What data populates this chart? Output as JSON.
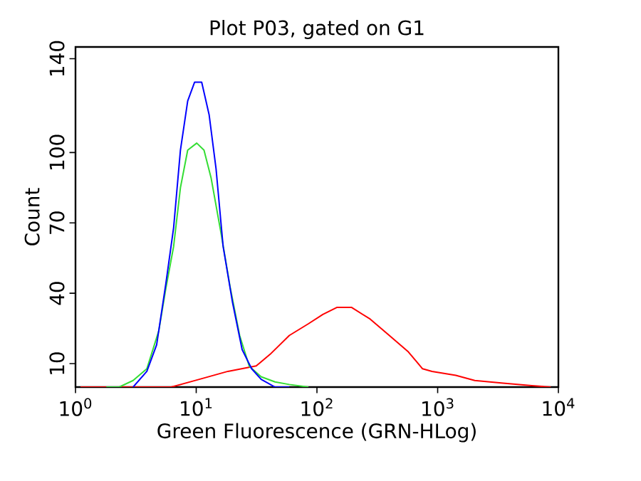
{
  "chart_data": {
    "type": "line",
    "title": "Plot P03, gated on G1",
    "xlabel": "Green Fluorescence (GRN-HLog)",
    "ylabel": "Count",
    "log": "x",
    "grid": false,
    "marker": "none",
    "line_style": "solid",
    "xlim": [
      1,
      10000
    ],
    "ylim": [
      0,
      145
    ],
    "xticks": [
      {
        "value": 1,
        "label": "10$^{0}$"
      },
      {
        "value": 10,
        "label": "10$^{1}$"
      },
      {
        "value": 100,
        "label": "10$^{2}$"
      },
      {
        "value": 1000,
        "label": "10$^{3}$"
      },
      {
        "value": 10000,
        "label": "10$^{4}$"
      }
    ],
    "yticks": [
      10,
      40,
      70,
      100,
      140
    ],
    "series": [
      {
        "color": "#ff0000",
        "x": [
          1.1,
          6.2,
          10.6,
          18.3,
          31.4,
          41,
          59,
          85,
          112,
          147,
          193,
          276,
          398,
          572,
          750,
          898,
          1413,
          2028,
          3490,
          6025,
          8650
        ],
        "values": [
          0,
          0,
          3.3,
          6.7,
          9,
          14,
          22,
          27,
          31,
          34,
          34,
          29,
          22,
          15,
          7.8,
          6.7,
          5,
          2.8,
          1.7,
          0.6,
          0
        ]
      },
      {
        "color": "#33dd33",
        "x": [
          1.8,
          2.3,
          3.0,
          3.9,
          4.9,
          5.6,
          6.5,
          7.4,
          8.5,
          10.1,
          11.6,
          13.3,
          16,
          19.2,
          22.9,
          27.5,
          34.5,
          45,
          59,
          85
        ],
        "values": [
          0,
          0,
          2.8,
          7.8,
          24,
          42,
          60,
          85,
          101,
          104,
          101,
          89,
          66,
          42,
          22,
          8.9,
          4.4,
          2.2,
          1.1,
          0
        ]
      },
      {
        "color": "#0000ff",
        "x": [
          3.0,
          3.9,
          4.7,
          5.6,
          6.5,
          7.4,
          8.5,
          9.7,
          11.1,
          12.8,
          14.6,
          16.7,
          20,
          24,
          28.8,
          34.5,
          45,
          59
        ],
        "values": [
          0,
          6.7,
          18,
          44,
          68,
          101,
          122,
          130,
          130,
          116,
          93,
          60,
          36,
          16,
          7.8,
          3.3,
          0,
          0
        ]
      }
    ]
  }
}
